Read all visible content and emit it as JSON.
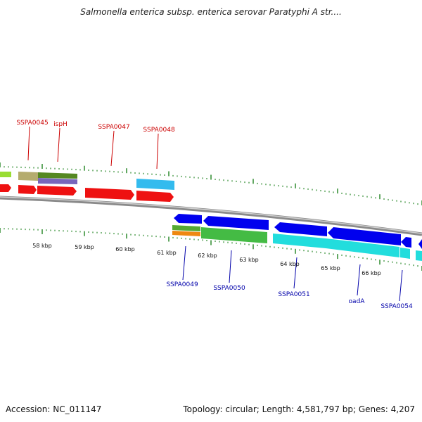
{
  "title": "Salmonella enterica subsp. enterica serovar Paratyphi A str....",
  "accession": "Accession: NC_011147",
  "topology": "Topology: circular; Length: 4,581,797 bp; Genes: 4,207",
  "colors": {
    "forward_label": "#cc0000",
    "reverse_label": "#0000aa",
    "tick": "#2e8b2e",
    "backbone": "#8a8a8a"
  },
  "kbp_labels": [
    "58 kbp",
    "59 kbp",
    "60 kbp",
    "61 kbp",
    "62 kbp",
    "63 kbp",
    "64 kbp",
    "65 kbp",
    "66 kbp"
  ],
  "forward_genes": [
    {
      "name": "SSPA0045",
      "label": "SSPA0045"
    },
    {
      "name": "ispH",
      "label": "ispH"
    },
    {
      "name": "SSPA0047",
      "label": "SSPA0047"
    },
    {
      "name": "SSPA0048",
      "label": "SSPA0048"
    }
  ],
  "reverse_genes": [
    {
      "name": "SSPA0049",
      "label": "SSPA0049"
    },
    {
      "name": "SSPA0050",
      "label": "SSPA0050"
    },
    {
      "name": "SSPA0051",
      "label": "SSPA0051"
    },
    {
      "name": "oadA",
      "label": "oadA"
    },
    {
      "name": "SSPA0054",
      "label": "SSPA0054"
    }
  ]
}
